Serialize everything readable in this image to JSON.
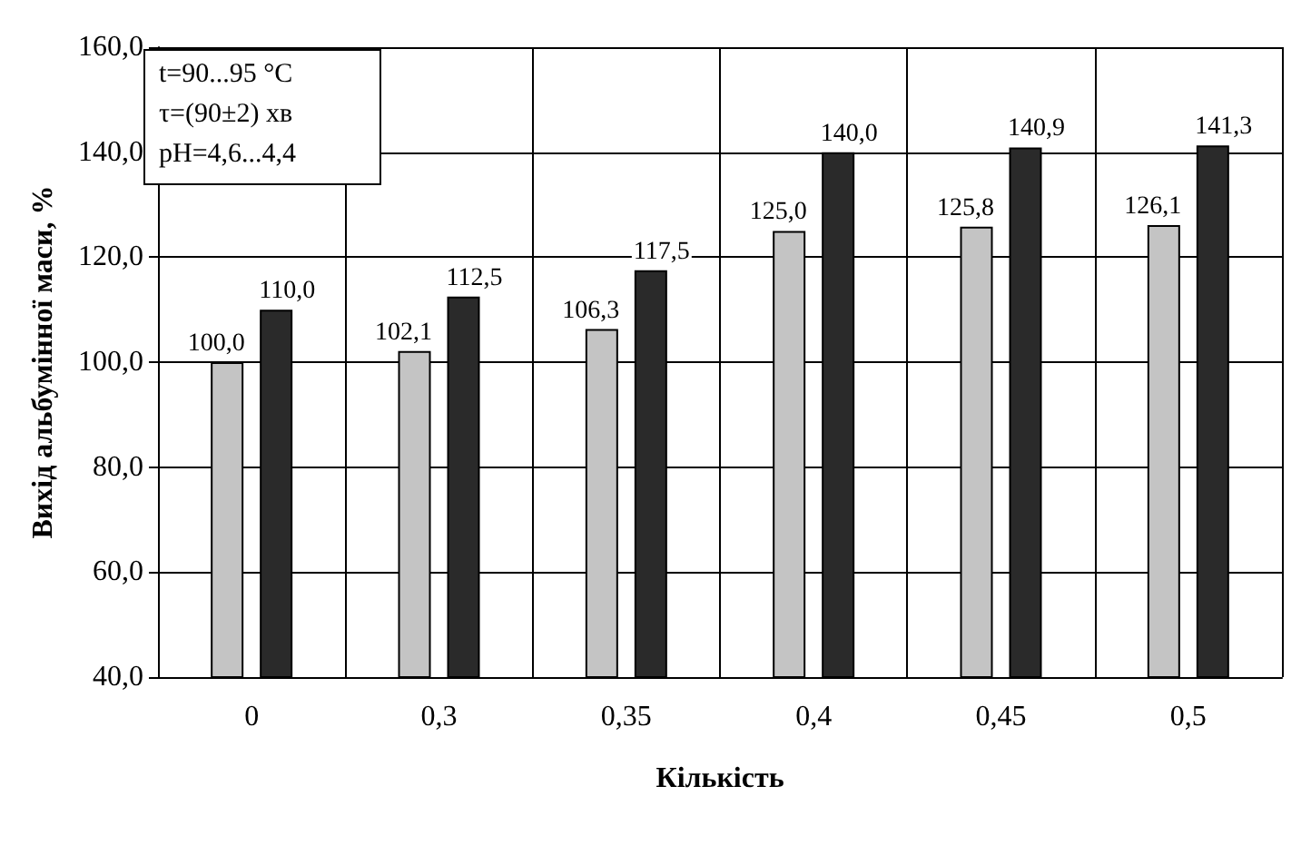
{
  "chart_data": {
    "type": "bar",
    "xlabel": "Кількість",
    "ylabel": "Вихід альбумінної маси, %",
    "categories": [
      "0",
      "0,3",
      "0,35",
      "0,4",
      "0,45",
      "0,5"
    ],
    "series": [
      {
        "color": "#c4c4c4",
        "values": [
          100.0,
          102.1,
          106.3,
          125.0,
          125.8,
          126.1
        ],
        "value_labels": [
          "100,0",
          "102,1",
          "106,3",
          "125,0",
          "125,8",
          "126,1"
        ]
      },
      {
        "color": "#2a2a2a",
        "values": [
          110.0,
          112.5,
          117.5,
          140.0,
          140.9,
          141.3
        ],
        "value_labels": [
          "110,0",
          "112,5",
          "117,5",
          "140,0",
          "140,9",
          "141,3"
        ]
      }
    ],
    "ylim": [
      40,
      160
    ],
    "yticks": [
      {
        "value": 40,
        "label": "40,0"
      },
      {
        "value": 60,
        "label": "60,0"
      },
      {
        "value": 80,
        "label": "80,0"
      },
      {
        "value": 100,
        "label": "100,0"
      },
      {
        "value": 120,
        "label": "120,0"
      },
      {
        "value": 140,
        "label": "140,0"
      },
      {
        "value": 160,
        "label": "160,0"
      }
    ],
    "grid": true,
    "annotations": [
      "t=90...95 °C",
      "τ=(90±2) хв",
      "pH=4,6...4,4"
    ]
  }
}
